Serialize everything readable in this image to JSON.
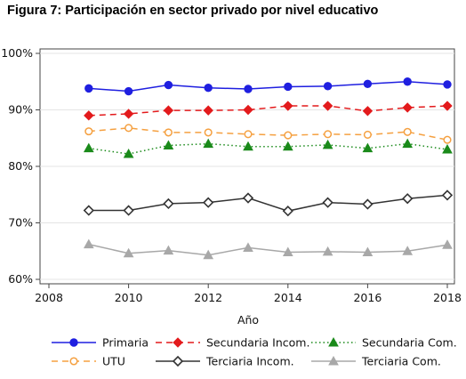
{
  "figure_title": "Figura 7: Participación en sector privado por nivel educativo",
  "chart_data": {
    "type": "line",
    "title": "",
    "xlabel": "Año",
    "ylabel": "",
    "x": [
      2009,
      2010,
      2011,
      2012,
      2013,
      2014,
      2015,
      2016,
      2017,
      2018
    ],
    "xlim": [
      2008,
      2018
    ],
    "ylim": [
      0.6,
      1.0
    ],
    "x_ticks": [
      2008,
      2010,
      2012,
      2014,
      2016,
      2018
    ],
    "x_tick_labels": [
      "2008",
      "2010",
      "2012",
      "2014",
      "2016",
      "2018"
    ],
    "y_ticks": [
      0.6,
      0.7,
      0.8,
      0.9,
      1.0
    ],
    "y_tick_labels": [
      "60%",
      "70%",
      "80%",
      "90%",
      "100%"
    ],
    "grid": true,
    "legend_position": "bottom",
    "series": [
      {
        "name": "Primaria",
        "values": [
          0.938,
          0.933,
          0.944,
          0.939,
          0.937,
          0.941,
          0.942,
          0.946,
          0.95,
          0.945
        ],
        "color": "#1f1fe0",
        "dash": "solid",
        "marker": "circle"
      },
      {
        "name": "Secundaria Incom.",
        "values": [
          0.89,
          0.893,
          0.899,
          0.899,
          0.9,
          0.907,
          0.907,
          0.898,
          0.904,
          0.907
        ],
        "color": "#e31a1c",
        "dash": "dash",
        "marker": "diamond"
      },
      {
        "name": "Secundaria Com.",
        "values": [
          0.832,
          0.822,
          0.837,
          0.84,
          0.835,
          0.835,
          0.838,
          0.832,
          0.84,
          0.83
        ],
        "color": "#1a8a1a",
        "dash": "dot",
        "marker": "triangle"
      },
      {
        "name": "UTU",
        "values": [
          0.862,
          0.868,
          0.86,
          0.86,
          0.857,
          0.855,
          0.857,
          0.856,
          0.861,
          0.847
        ],
        "color": "#f5a040",
        "dash": "dash",
        "marker": "circle-open"
      },
      {
        "name": "Terciaria Incom.",
        "values": [
          0.722,
          0.722,
          0.734,
          0.736,
          0.744,
          0.721,
          0.736,
          0.733,
          0.743,
          0.749
        ],
        "color": "#333333",
        "dash": "solid",
        "marker": "diamond-open"
      },
      {
        "name": "Terciaria Com.",
        "values": [
          0.662,
          0.646,
          0.651,
          0.643,
          0.656,
          0.648,
          0.649,
          0.648,
          0.65,
          0.661
        ],
        "color": "#a8a8a8",
        "dash": "solid",
        "marker": "triangle-filled"
      }
    ]
  }
}
